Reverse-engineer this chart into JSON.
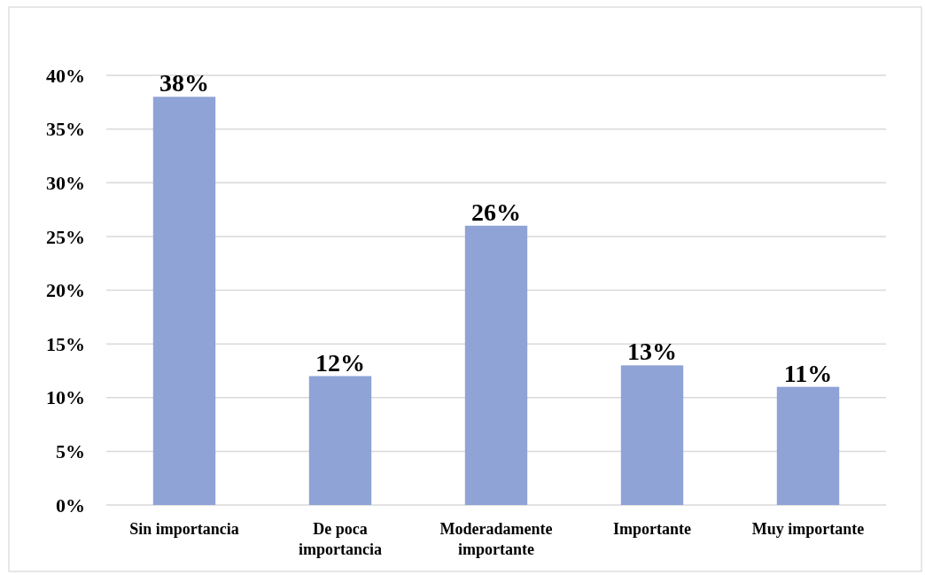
{
  "chart_data": {
    "type": "bar",
    "categories": [
      "Sin importancia",
      "De poca importancia",
      "Moderadamente importante",
      "Importante",
      "Muy importante"
    ],
    "values": [
      38,
      12,
      26,
      13,
      11
    ],
    "value_labels": [
      "38%",
      "12%",
      "26%",
      "13%",
      "11%"
    ],
    "color": "#8fa3d6",
    "ylim": [
      0,
      40
    ],
    "yticks": [
      {
        "value": 0,
        "label": "0%"
      },
      {
        "value": 5,
        "label": "5%"
      },
      {
        "value": 10,
        "label": "10%"
      },
      {
        "value": 15,
        "label": "15%"
      },
      {
        "value": 20,
        "label": "20%"
      },
      {
        "value": 25,
        "label": "25%"
      },
      {
        "value": 30,
        "label": "30%"
      },
      {
        "value": 35,
        "label": "35%"
      },
      {
        "value": 40,
        "label": "40%"
      }
    ],
    "grid": "y"
  }
}
